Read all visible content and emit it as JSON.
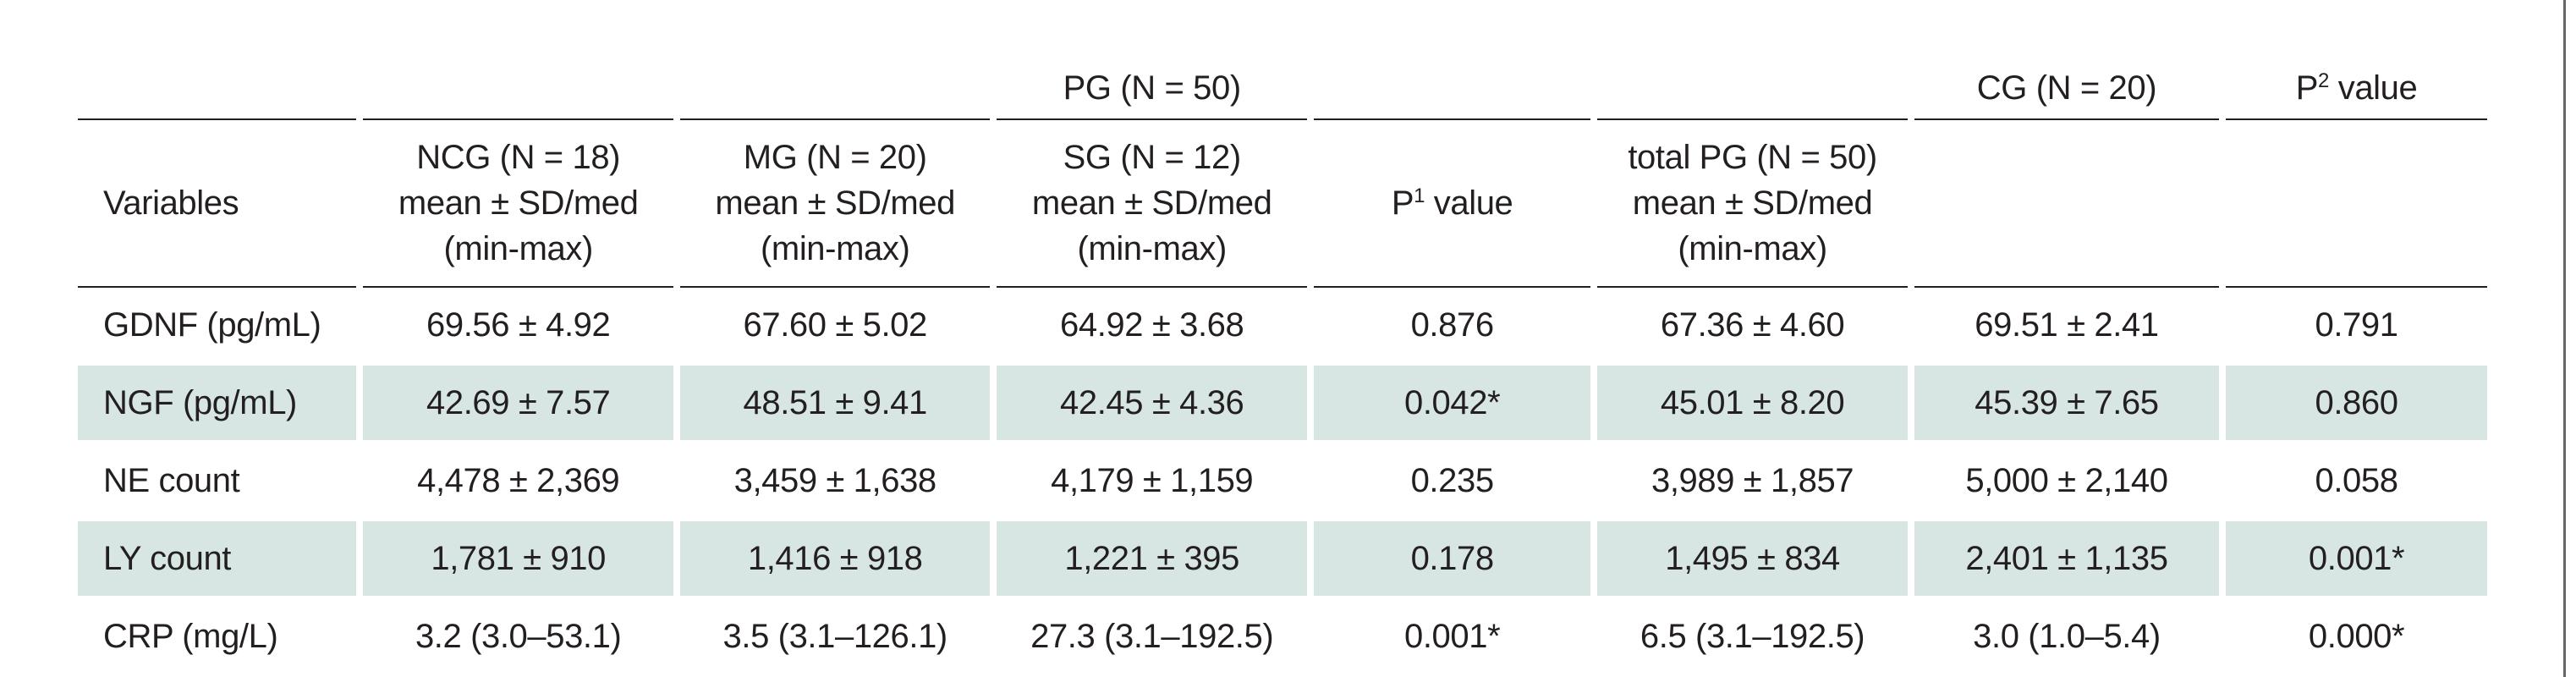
{
  "table": {
    "group_headers": {
      "pg": "PG (N = 50)",
      "cg": "CG (N = 20)",
      "p2_prefix": "P",
      "p2_sup": "2",
      "p2_suffix": " value"
    },
    "column_headers": {
      "variables": "Variables",
      "ncg": [
        "NCG (N = 18)",
        "mean ± SD/med",
        "(min-max)"
      ],
      "mg": [
        "MG (N = 20)",
        "mean ± SD/med",
        "(min-max)"
      ],
      "sg": [
        "SG (N = 12)",
        "mean ± SD/med",
        "(min-max)"
      ],
      "p1_prefix": "P",
      "p1_sup": "1",
      "p1_suffix": " value",
      "total": [
        "total PG (N = 50)",
        "mean ± SD/med",
        "(min-max)"
      ]
    },
    "rows": [
      {
        "variable": "GDNF (pg/mL)",
        "ncg": "69.56 ± 4.92",
        "mg": "67.60 ± 5.02",
        "sg": "64.92 ± 3.68",
        "p1": "0.876",
        "total": "67.36 ± 4.60",
        "cg": "69.51 ± 2.41",
        "p2": "0.791"
      },
      {
        "variable": "NGF (pg/mL)",
        "ncg": "42.69 ± 7.57",
        "mg": "48.51 ± 9.41",
        "sg": "42.45 ± 4.36",
        "p1": "0.042*",
        "total": "45.01 ± 8.20",
        "cg": "45.39 ± 7.65",
        "p2": "0.860"
      },
      {
        "variable": "NE count",
        "ncg": "4,478 ± 2,369",
        "mg": "3,459 ± 1,638",
        "sg": "4,179 ± 1,159",
        "p1": "0.235",
        "total": "3,989 ± 1,857",
        "cg": "5,000 ± 2,140",
        "p2": "0.058"
      },
      {
        "variable": "LY count",
        "ncg": "1,781 ± 910",
        "mg": "1,416 ± 918",
        "sg": "1,221 ± 395",
        "p1": "0.178",
        "total": "1,495 ± 834",
        "cg": "2,401 ± 1,135",
        "p2": "0.001*"
      },
      {
        "variable": "CRP (mg/L)",
        "ncg": "3.2 (3.0–53.1)",
        "mg": "3.5 (3.1–126.1)",
        "sg": "27.3 (3.1–192.5)",
        "p1": "0.001*",
        "total": "6.5 (3.1–192.5)",
        "cg": "3.0 (1.0–5.4)",
        "p2": "0.000*"
      }
    ],
    "shade_color": "#d7e6e3"
  }
}
